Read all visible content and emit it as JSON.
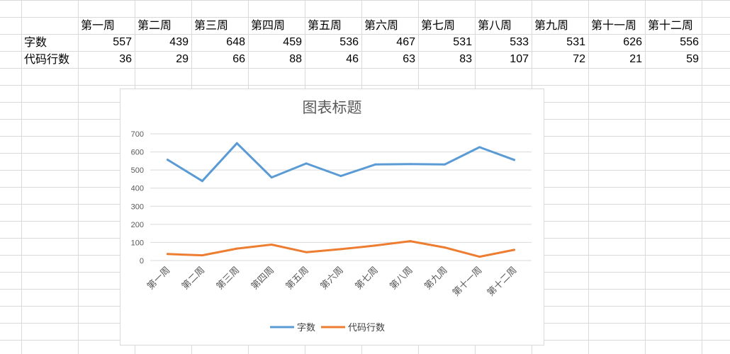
{
  "sheet": {
    "headers": [
      "第一周",
      "第二周",
      "第三周",
      "第四周",
      "第五周",
      "第六周",
      "第七周",
      "第八周",
      "第九周",
      "第十一周",
      "第十二周"
    ],
    "rows": [
      {
        "label": "字数",
        "values": [
          "557",
          "439",
          "648",
          "459",
          "536",
          "467",
          "531",
          "533",
          "531",
          "626",
          "556"
        ]
      },
      {
        "label": "代码行数",
        "values": [
          "36",
          "29",
          "66",
          "88",
          "46",
          "63",
          "83",
          "107",
          "72",
          "21",
          "59"
        ]
      }
    ]
  },
  "colors": {
    "series1": "#5b9bd5",
    "series2": "#ed7d31",
    "gridline": "#d9d9d9"
  },
  "chart_data": {
    "type": "line",
    "title": "图表标题",
    "categories": [
      "第一周",
      "第二周",
      "第三周",
      "第四周",
      "第五周",
      "第六周",
      "第七周",
      "第八周",
      "第九周",
      "第十一周",
      "第十二周"
    ],
    "series": [
      {
        "name": "字数",
        "values": [
          557,
          439,
          648,
          459,
          536,
          467,
          531,
          533,
          531,
          626,
          556
        ]
      },
      {
        "name": "代码行数",
        "values": [
          36,
          29,
          66,
          88,
          46,
          63,
          83,
          107,
          72,
          21,
          59
        ]
      }
    ],
    "ylim": [
      0,
      700
    ],
    "yticks": [
      0,
      100,
      200,
      300,
      400,
      500,
      600,
      700
    ],
    "xlabel": "",
    "ylabel": "",
    "grid": true,
    "legend": "bottom"
  }
}
